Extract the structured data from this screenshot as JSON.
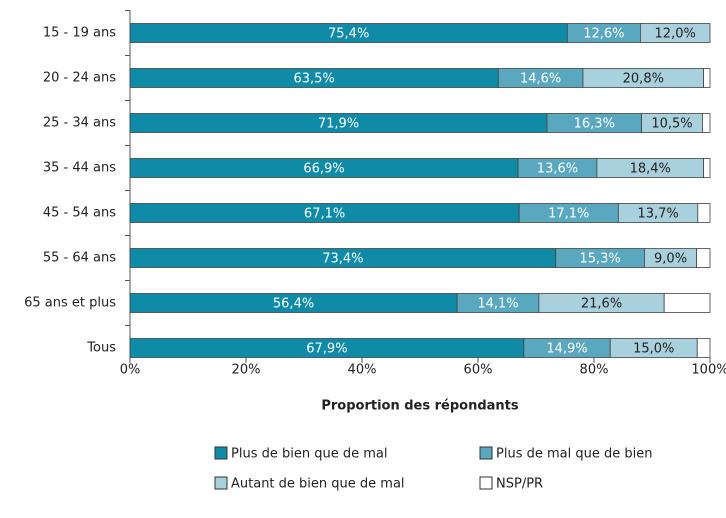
{
  "chart_data": {
    "type": "stacked-bar-horizontal",
    "categories": [
      "15 - 19 ans",
      "20 - 24 ans",
      "25 - 34 ans",
      "35 - 44 ans",
      "45 - 54 ans",
      "55 - 64 ans",
      "65 ans et plus",
      "Tous"
    ],
    "series": [
      {
        "name": "Plus de bien que de mal",
        "color": "#0f8ba7",
        "label_color": "#ffffff",
        "values": [
          75.4,
          63.5,
          71.9,
          66.9,
          67.1,
          73.4,
          56.4,
          67.9
        ],
        "value_labels": [
          "75,4%",
          "63,5%",
          "71,9%",
          "66,9%",
          "67,1%",
          "73,4%",
          "56,4%",
          "67,9%"
        ]
      },
      {
        "name": "Plus de mal que de bien",
        "color": "#5aa7c0",
        "label_color": "#ffffff",
        "values": [
          12.6,
          14.6,
          16.3,
          13.6,
          17.1,
          15.3,
          14.1,
          14.9
        ],
        "value_labels": [
          "12,6%",
          "14,6%",
          "16,3%",
          "13,6%",
          "17,1%",
          "15,3%",
          "14,1%",
          "14,9%"
        ]
      },
      {
        "name": "Autant de bien que de mal",
        "color": "#a9d0dd",
        "label_color": "#222222",
        "values": [
          12.0,
          20.8,
          10.5,
          18.4,
          13.7,
          9.0,
          21.6,
          15.0
        ],
        "value_labels": [
          "12,0%",
          "20,8%",
          "10,5%",
          "18,4%",
          "13,7%",
          "9,0%",
          "21,6%",
          "15,0%"
        ]
      },
      {
        "name": "NSP/PR",
        "color": "#ffffff",
        "values": [
          0,
          1.1,
          1.3,
          1.1,
          2.1,
          2.3,
          7.9,
          2.2
        ]
      }
    ],
    "xlabel": "Proportion des répondants",
    "xlim": [
      0,
      100
    ],
    "xticks": [
      {
        "value": 0,
        "label": "0%"
      },
      {
        "value": 20,
        "label": "20%"
      },
      {
        "value": 40,
        "label": "40%"
      },
      {
        "value": 60,
        "label": "60%"
      },
      {
        "value": 80,
        "label": "80%"
      },
      {
        "value": 100,
        "label": "100%"
      }
    ]
  }
}
